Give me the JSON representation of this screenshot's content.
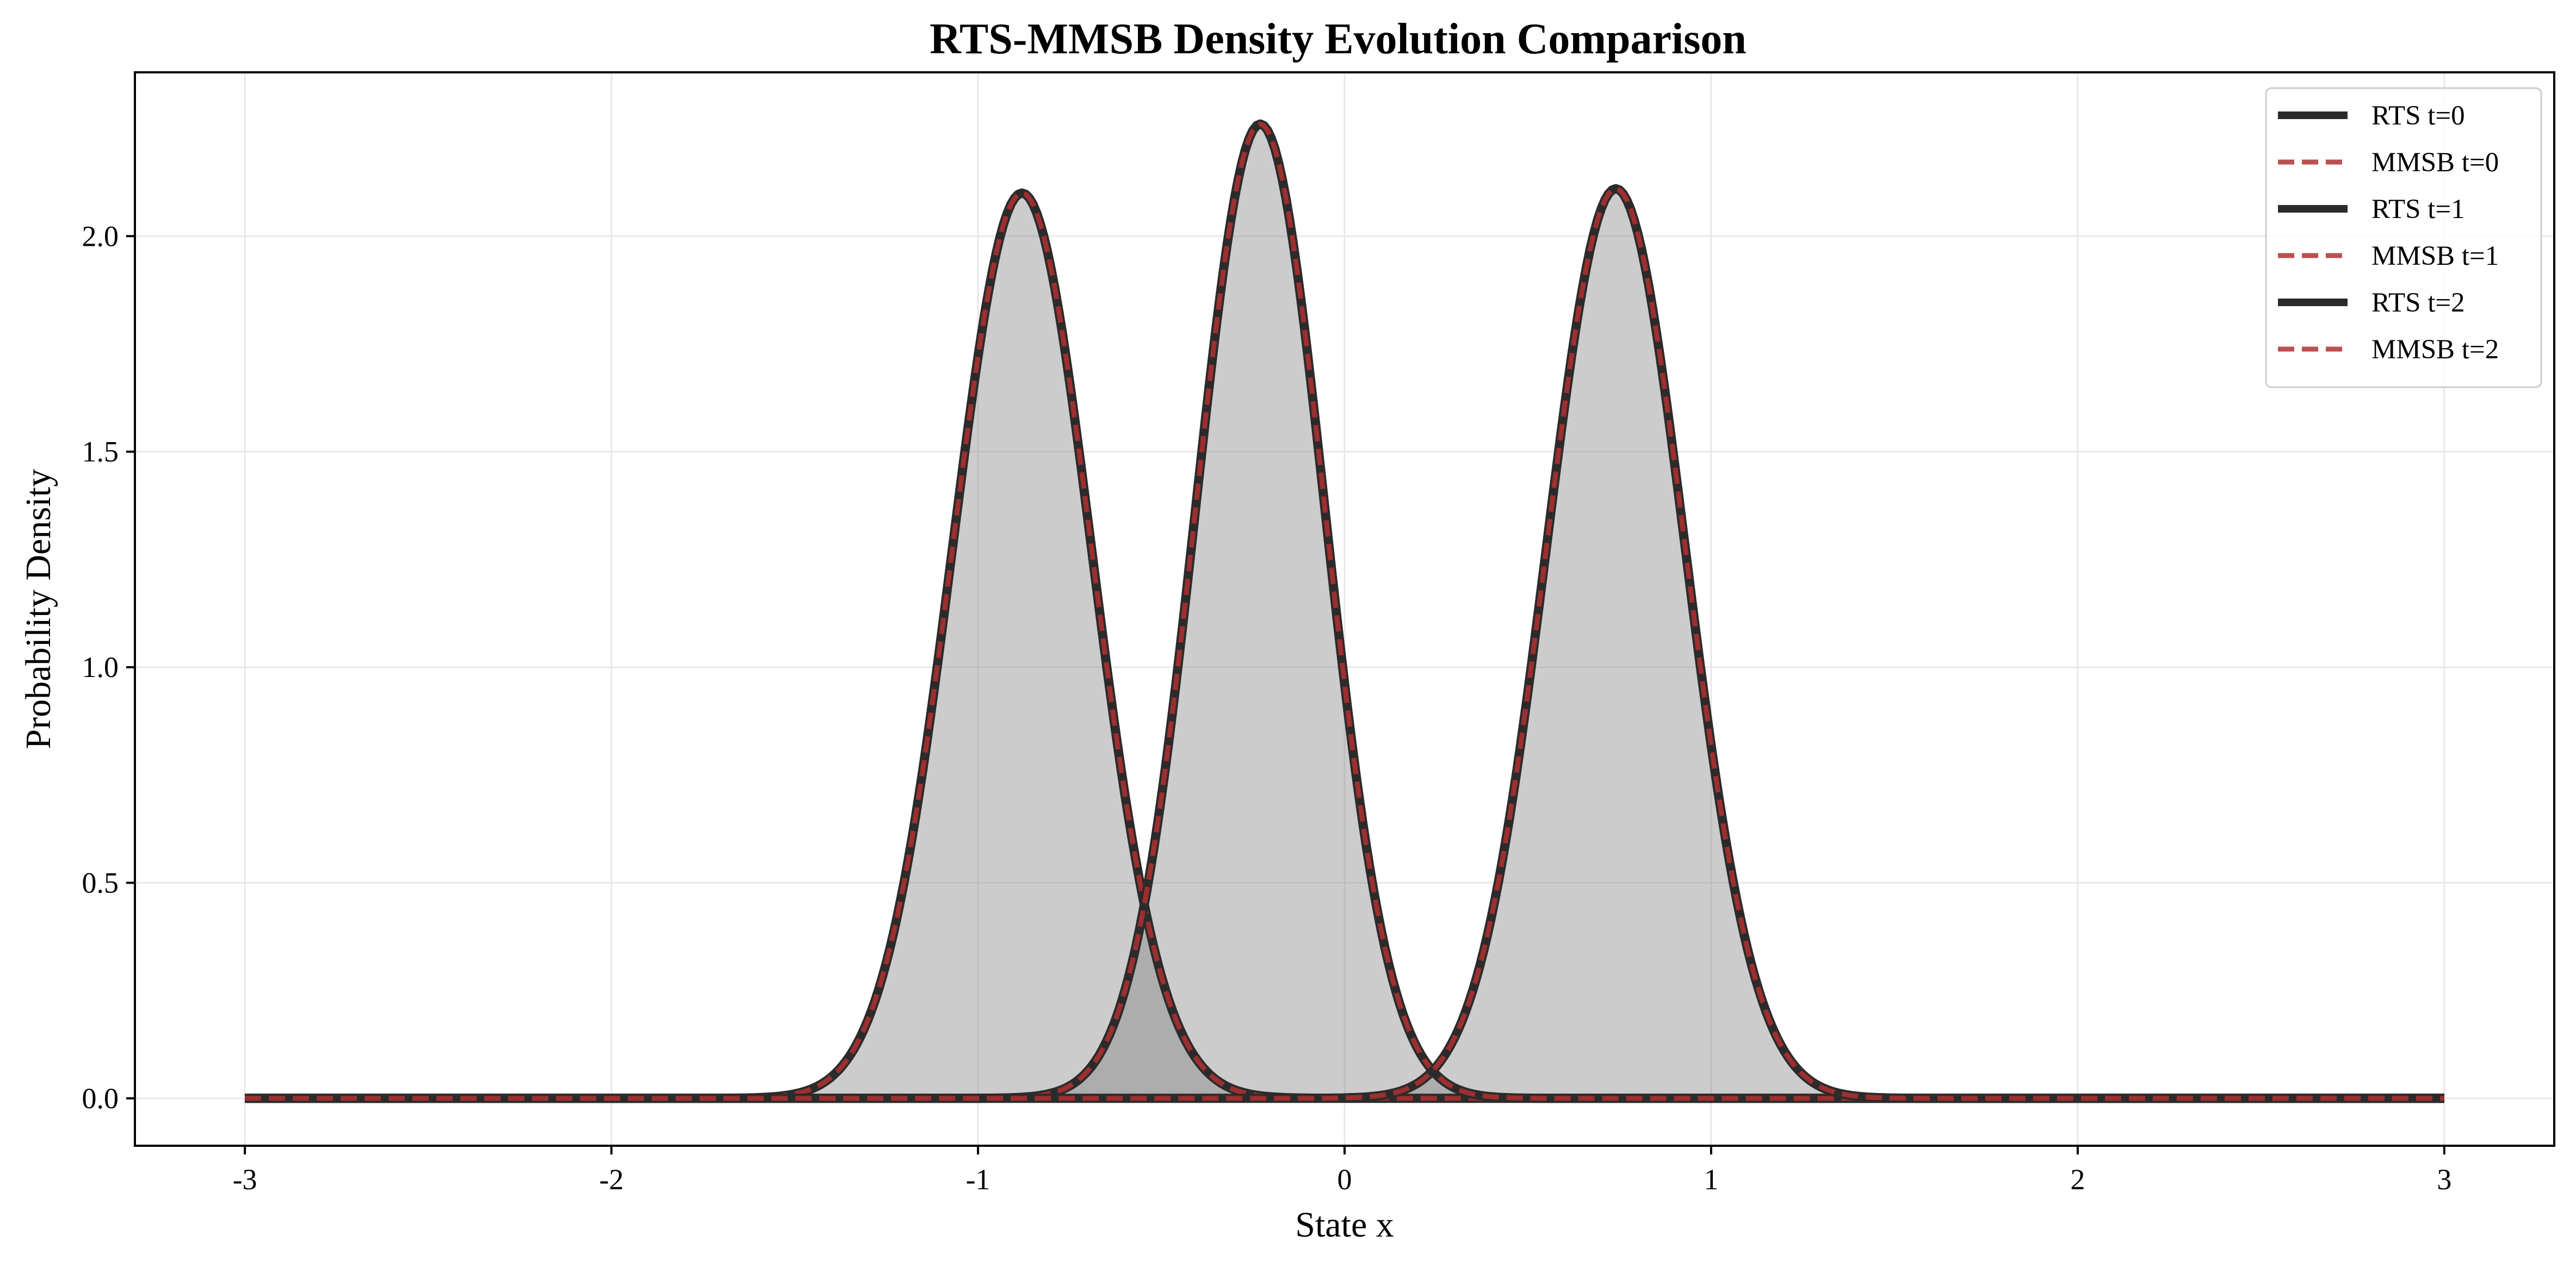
{
  "chart_data": {
    "type": "line",
    "title": "RTS-MMSB Density Evolution Comparison",
    "xlabel": "State x",
    "ylabel": "Probability Density",
    "xlim": [
      -3.3,
      3.3
    ],
    "ylim": [
      -0.11,
      2.38
    ],
    "x_ticks": [
      -3,
      -2,
      -1,
      0,
      1,
      2,
      3
    ],
    "x_tick_labels": [
      "-3",
      "-2",
      "-1",
      "0",
      "1",
      "2",
      "3"
    ],
    "y_ticks": [
      0.0,
      0.5,
      1.0,
      1.5,
      2.0
    ],
    "y_tick_labels": [
      "0.0",
      "0.5",
      "1.0",
      "1.5",
      "2.0"
    ],
    "x_range": [
      -3,
      3
    ],
    "grid": true,
    "legend_position": "top-right",
    "fill_under_curves": true,
    "series": [
      {
        "name": "RTS t=0",
        "distribution": "gaussian",
        "mean": -0.88,
        "std": 0.19,
        "peak": 2.1,
        "style": "solid",
        "color": "#2b2b2b"
      },
      {
        "name": "MMSB t=0",
        "distribution": "gaussian",
        "mean": -0.88,
        "std": 0.19,
        "peak": 2.1,
        "style": "dashed",
        "color": "#b03030"
      },
      {
        "name": "RTS t=1",
        "distribution": "gaussian",
        "mean": -0.23,
        "std": 0.176,
        "peak": 2.26,
        "style": "solid",
        "color": "#2b2b2b"
      },
      {
        "name": "MMSB t=1",
        "distribution": "gaussian",
        "mean": -0.23,
        "std": 0.176,
        "peak": 2.26,
        "style": "dashed",
        "color": "#b03030"
      },
      {
        "name": "RTS t=2",
        "distribution": "gaussian",
        "mean": 0.74,
        "std": 0.189,
        "peak": 2.11,
        "style": "solid",
        "color": "#2b2b2b"
      },
      {
        "name": "MMSB t=2",
        "distribution": "gaussian",
        "mean": 0.74,
        "std": 0.189,
        "peak": 2.11,
        "style": "dashed",
        "color": "#b03030"
      }
    ]
  }
}
